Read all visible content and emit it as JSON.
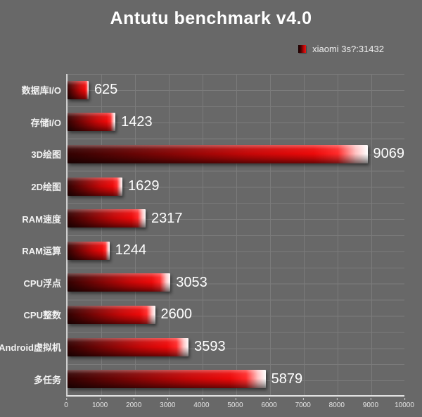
{
  "title": "Antutu benchmark v4.0",
  "legend": {
    "label": "xiaomi 3s?:31432",
    "marker": "red-cube-icon"
  },
  "colors": {
    "background": "#686868",
    "grid": "#7b7b7b",
    "axis": "#e4e4e4",
    "bar_main": "#cc0000",
    "bar_tip": "#ffffff",
    "text": "#ffffff"
  },
  "chart_data": {
    "type": "bar",
    "orientation": "horizontal",
    "title": "Antutu benchmark v4.0",
    "legend_entries": [
      "xiaomi 3s?:31432"
    ],
    "legend_position": "top-right",
    "series_name": "xiaomi 3s?",
    "total_score": 31432,
    "categories": [
      "数据库I/O",
      "存储I/O",
      "3D绘图",
      "2D绘图",
      "RAM速度",
      "RAM运算",
      "CPU浮点",
      "CPU整数",
      "Android虚拟机",
      "多任务"
    ],
    "values": [
      625,
      1423,
      9069,
      1629,
      2317,
      1244,
      3053,
      2600,
      3593,
      5879
    ],
    "xlabel": "",
    "ylabel": "",
    "xlim": [
      0,
      10000
    ],
    "x_ticks": [
      0,
      1000,
      2000,
      3000,
      4000,
      5000,
      6000,
      7000,
      8000,
      9000,
      10000
    ],
    "grid": true
  }
}
